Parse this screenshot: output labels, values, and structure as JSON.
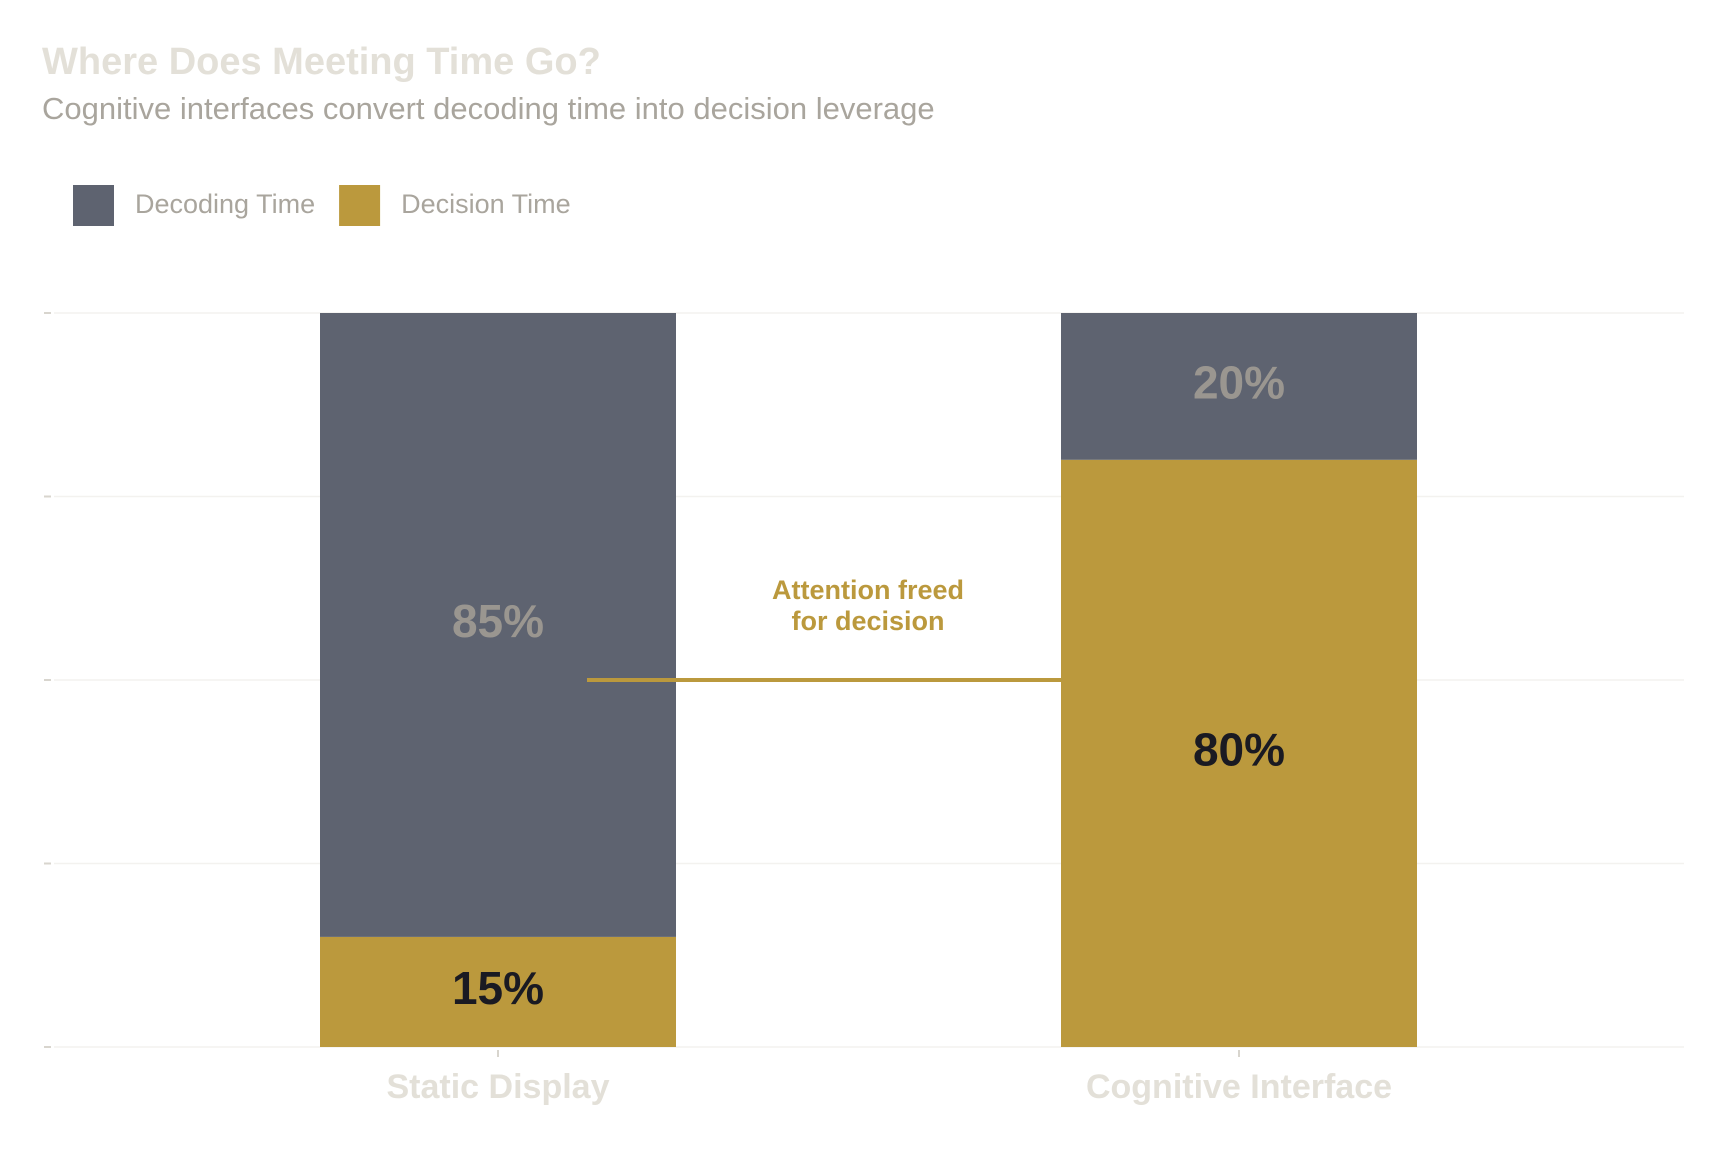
{
  "chart_data": {
    "type": "stacked_bar",
    "title": "Where Does Meeting Time Go?",
    "subtitle": "Cognitive interfaces convert decoding time into decision leverage",
    "categories": [
      "Static Display",
      "Cognitive Interface"
    ],
    "series": [
      {
        "name": "Decoding Time",
        "color": "#5e6370",
        "label_color": "#9a9690",
        "values": [
          85,
          20
        ],
        "value_labels": [
          "85%",
          "20%"
        ]
      },
      {
        "name": "Decision Time",
        "color": "#bb993d",
        "label_color": "#1a1a22",
        "values": [
          15,
          80
        ],
        "value_labels": [
          "15%",
          "80%"
        ]
      }
    ],
    "annotation": "Attention freed\nfor decision",
    "annotation_color": "#bb993d",
    "ylim": [
      0,
      100
    ],
    "yticks": [
      0,
      25,
      50,
      75,
      100
    ],
    "grid": true
  }
}
